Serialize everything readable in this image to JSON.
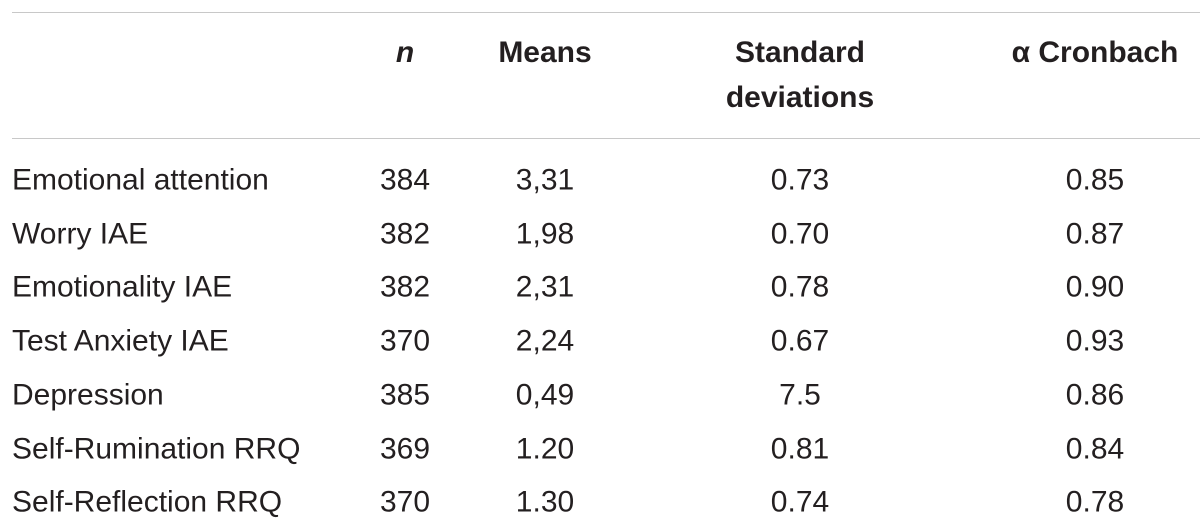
{
  "table": {
    "header": [
      "n",
      "Means",
      "Standard deviations",
      "α Cronbach"
    ],
    "rows": [
      [
        "Emotional attention",
        "384",
        "3,31",
        "0.73",
        "0.85"
      ],
      [
        "Worry IAE",
        "382",
        "1,98",
        "0.70",
        "0.87"
      ],
      [
        "Emotionality IAE",
        "382",
        "2,31",
        "0.78",
        "0.90"
      ],
      [
        "Test Anxiety IAE",
        "370",
        "2,24",
        "0.67",
        "0.93"
      ],
      [
        "Depression",
        "385",
        "0,49",
        "7.5",
        "0.86"
      ],
      [
        "Self-Rumination RRQ",
        "369",
        "1.20",
        "0.81",
        "0.84"
      ],
      [
        "Self-Reflection RRQ",
        "370",
        "1.30",
        "0.74",
        "0.78"
      ]
    ]
  }
}
